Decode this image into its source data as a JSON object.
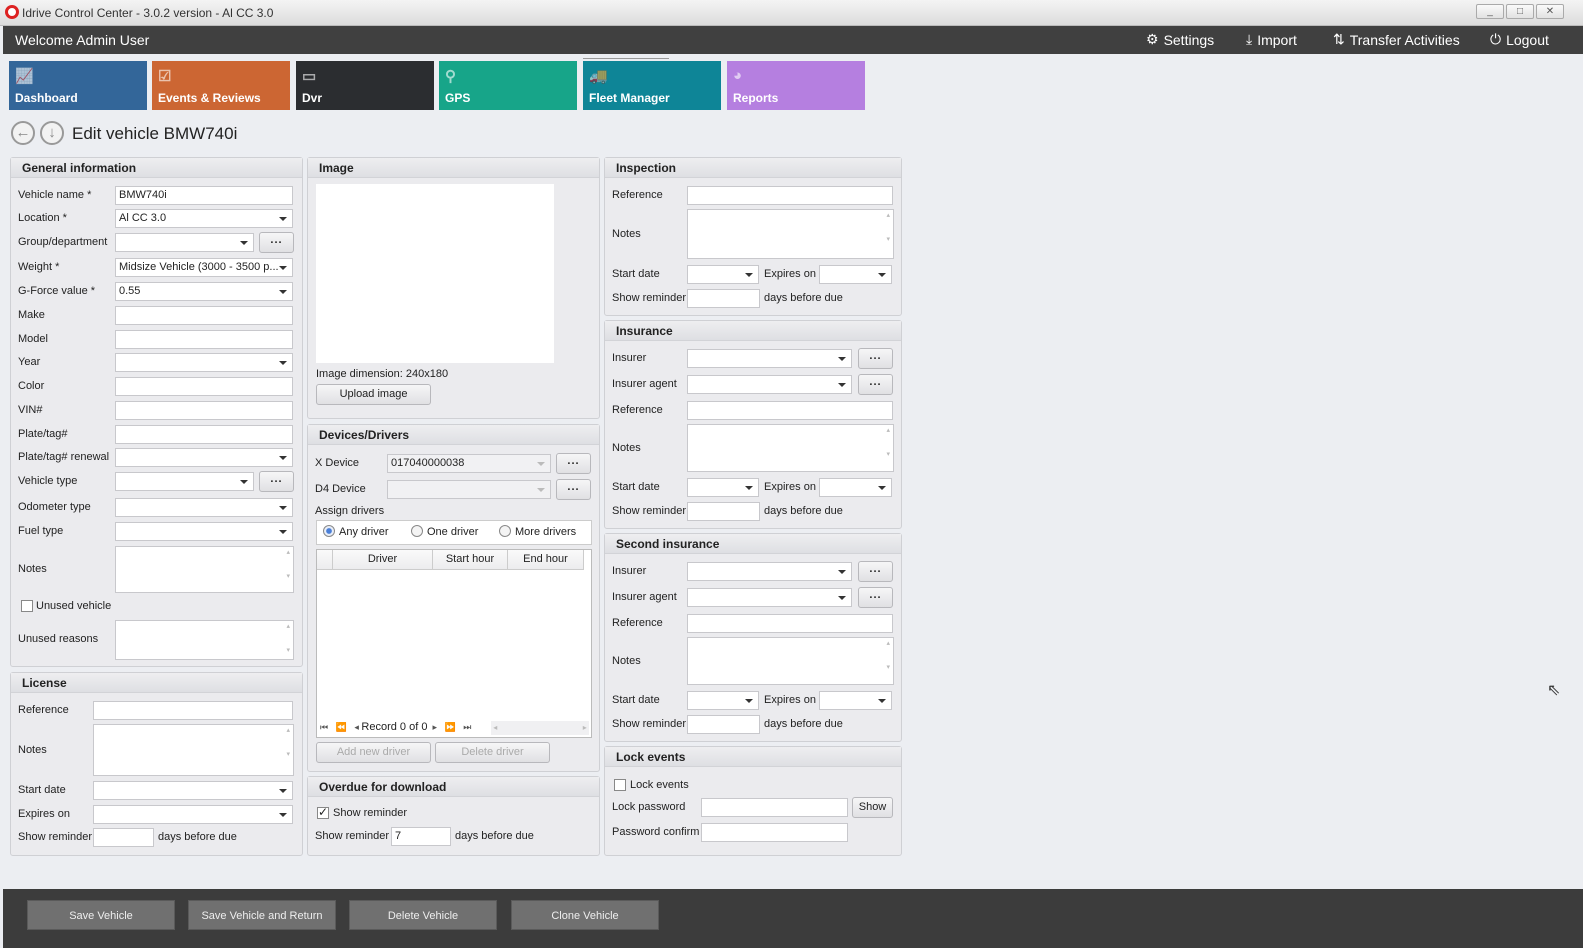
{
  "window": {
    "title": "Idrive Control Center - 3.0.2 version - Al CC 3.0",
    "minimize": "_",
    "maximize": "□",
    "close": "✕"
  },
  "topbar": {
    "welcome": "Welcome Admin User",
    "settings": "Settings",
    "import": "Import",
    "transfer": "Transfer Activities",
    "logout": "Logout"
  },
  "tiles": [
    {
      "label": "Dashboard",
      "color": "#336699",
      "icon": "chart-icon"
    },
    {
      "label": "Events & Reviews",
      "color": "#cc6633",
      "icon": "clipboard-icon"
    },
    {
      "label": "Dvr",
      "color": "#2b2d30",
      "icon": "dvr-icon"
    },
    {
      "label": "GPS",
      "color": "#17a589",
      "icon": "map-pin-icon"
    },
    {
      "label": "Fleet Manager",
      "color": "#0e8597",
      "icon": "fleet-icon"
    },
    {
      "label": "Reports",
      "color": "#b57fe0",
      "icon": "pie-chart-icon"
    }
  ],
  "page": {
    "title": "Edit vehicle BMW740i"
  },
  "general": {
    "title": "General information",
    "vehicle_name": "Vehicle name *",
    "vehicle_name_value": "BMW740i",
    "location": "Location *",
    "location_value": "Al CC 3.0",
    "group": "Group/department",
    "weight": "Weight *",
    "weight_value": "Midsize Vehicle (3000 - 3500 p...",
    "gforce": "G-Force value *",
    "gforce_value": "0.55",
    "make": "Make",
    "model": "Model",
    "year": "Year",
    "color": "Color",
    "vin": "VIN#",
    "plate": "Plate/tag#",
    "plate_renewal": "Plate/tag# renewal",
    "vehicle_type": "Vehicle type",
    "odometer": "Odometer type",
    "fuel": "Fuel type",
    "notes": "Notes",
    "unused": "Unused vehicle",
    "unused_reasons": "Unused reasons",
    "dots": "..."
  },
  "license": {
    "title": "License",
    "reference": "Reference",
    "notes": "Notes",
    "start": "Start date",
    "expires": "Expires on",
    "reminder": "Show reminder",
    "days": "days before due"
  },
  "image": {
    "title": "Image",
    "dimension": "Image dimension:  240x180",
    "upload": "Upload image"
  },
  "devices": {
    "title": "Devices/Drivers",
    "x_device": "X Device",
    "x_device_value": "017040000038",
    "d4_device": "D4 Device",
    "assign": "Assign drivers",
    "any": "Any driver",
    "one": "One driver",
    "more": "More drivers",
    "selected": "any",
    "columns": [
      "Driver",
      "Start hour",
      "End hour"
    ],
    "record": "Record 0 of 0",
    "add": "Add new driver",
    "delete": "Delete driver"
  },
  "overdue": {
    "title": "Overdue for download",
    "show_reminder_cb": "Show reminder",
    "checked": true,
    "reminder": "Show reminder",
    "reminder_value": "7",
    "days": "days before due"
  },
  "inspection": {
    "title": "Inspection",
    "reference": "Reference",
    "notes": "Notes",
    "start": "Start date",
    "expires": "Expires on",
    "reminder": "Show reminder",
    "days": "days before due"
  },
  "insurance": {
    "title": "Insurance",
    "insurer": "Insurer",
    "agent": "Insurer agent",
    "reference": "Reference",
    "notes": "Notes",
    "start": "Start date",
    "expires": "Expires on",
    "reminder": "Show reminder",
    "days": "days before due"
  },
  "second": {
    "title": "Second insurance",
    "insurer": "Insurer",
    "agent": "Insurer agent",
    "reference": "Reference",
    "notes": "Notes",
    "start": "Start date",
    "expires": "Expires on",
    "reminder": "Show reminder",
    "days": "days before due"
  },
  "lock": {
    "title": "Lock events",
    "lock_cb": "Lock events",
    "password": "Lock password",
    "show": "Show",
    "confirm": "Password confirm"
  },
  "footer": {
    "save": "Save Vehicle",
    "save_return": "Save Vehicle and Return",
    "delete": "Delete Vehicle",
    "clone": "Clone Vehicle"
  }
}
